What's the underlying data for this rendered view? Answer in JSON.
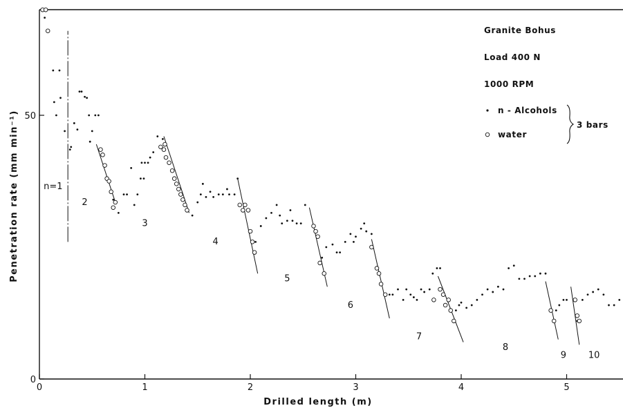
{
  "chart_data": {
    "type": "scatter",
    "title": "",
    "xlabel": "Drilled  length  (m)",
    "ylabel": "Penetration  rate  (mm min⁻¹)",
    "xlim": [
      0,
      5.55
    ],
    "ylim": [
      0,
      70
    ],
    "x_ticks": [
      "0",
      "1",
      "2",
      "3",
      "4",
      "5"
    ],
    "y_ticks": [
      "0",
      "50"
    ],
    "legend": {
      "lines": [
        "Granite Bohus",
        "Load  400 N",
        "1000  RPM"
      ],
      "n_alcohols_label": "n - Alcohols",
      "water_label": "water",
      "group_label": "3 bars",
      "placement": "top-right"
    },
    "segment_labels": [
      {
        "text": "n=1",
        "x": 0.13,
        "y": 36.0
      },
      {
        "text": "2",
        "x": 0.43,
        "y": 33.0
      },
      {
        "text": "3",
        "x": 1.0,
        "y": 29.0
      },
      {
        "text": "4",
        "x": 1.67,
        "y": 25.5
      },
      {
        "text": "5",
        "x": 2.35,
        "y": 18.5
      },
      {
        "text": "6",
        "x": 2.95,
        "y": 13.5
      },
      {
        "text": "7",
        "x": 3.6,
        "y": 7.5
      },
      {
        "text": "8",
        "x": 4.42,
        "y": 5.5
      },
      {
        "text": "9",
        "x": 4.97,
        "y": 4.0
      },
      {
        "text": "10",
        "x": 5.26,
        "y": 4.0
      }
    ],
    "divider": {
      "x": 0.27,
      "y_from": 26,
      "y_to": 66
    },
    "series": [
      {
        "name": "n - Alcohols",
        "marker": "dot",
        "points": [
          [
            0.05,
            68.5
          ],
          [
            0.13,
            58.5
          ],
          [
            0.19,
            58.5
          ],
          [
            0.14,
            52.5
          ],
          [
            0.2,
            53.3
          ],
          [
            0.16,
            50
          ],
          [
            0.24,
            47
          ],
          [
            0.29,
            43.5
          ],
          [
            0.3,
            44
          ],
          [
            0.33,
            48.5
          ],
          [
            0.36,
            47.3
          ],
          [
            0.38,
            54.5
          ],
          [
            0.4,
            54.5
          ],
          [
            0.43,
            53.5
          ],
          [
            0.45,
            53.3
          ],
          [
            0.47,
            50
          ],
          [
            0.5,
            47
          ],
          [
            0.53,
            50
          ],
          [
            0.56,
            50
          ],
          [
            0.48,
            45
          ],
          [
            0.7,
            34
          ],
          [
            0.75,
            31.5
          ],
          [
            0.8,
            35
          ],
          [
            0.83,
            35
          ],
          [
            0.87,
            40
          ],
          [
            0.9,
            33
          ],
          [
            0.93,
            35
          ],
          [
            0.96,
            38
          ],
          [
            0.99,
            38
          ],
          [
            0.97,
            41
          ],
          [
            1.0,
            41
          ],
          [
            1.03,
            41
          ],
          [
            1.05,
            42
          ],
          [
            1.08,
            43
          ],
          [
            1.12,
            46
          ],
          [
            1.17,
            45.5
          ],
          [
            1.45,
            31
          ],
          [
            1.5,
            33.5
          ],
          [
            1.53,
            35
          ],
          [
            1.55,
            37
          ],
          [
            1.58,
            34.5
          ],
          [
            1.62,
            35.5
          ],
          [
            1.65,
            34.5
          ],
          [
            1.7,
            35
          ],
          [
            1.74,
            35
          ],
          [
            1.78,
            36
          ],
          [
            1.8,
            35
          ],
          [
            1.85,
            35
          ],
          [
            1.88,
            38
          ],
          [
            2.05,
            26
          ],
          [
            2.1,
            29
          ],
          [
            2.15,
            30.5
          ],
          [
            2.2,
            31.5
          ],
          [
            2.25,
            33
          ],
          [
            2.28,
            31
          ],
          [
            2.3,
            29.5
          ],
          [
            2.35,
            30
          ],
          [
            2.38,
            32
          ],
          [
            2.4,
            30
          ],
          [
            2.44,
            29.5
          ],
          [
            2.48,
            29.5
          ],
          [
            2.52,
            33
          ],
          [
            2.68,
            23
          ],
          [
            2.72,
            25
          ],
          [
            2.78,
            25.5
          ],
          [
            2.82,
            24
          ],
          [
            2.85,
            24
          ],
          [
            2.9,
            26
          ],
          [
            2.95,
            27.5
          ],
          [
            2.98,
            26
          ],
          [
            3.0,
            27
          ],
          [
            3.05,
            28.5
          ],
          [
            3.08,
            29.5
          ],
          [
            3.1,
            28
          ],
          [
            3.15,
            27.5
          ],
          [
            3.32,
            16
          ],
          [
            3.35,
            16
          ],
          [
            3.4,
            17
          ],
          [
            3.45,
            15
          ],
          [
            3.48,
            17
          ],
          [
            3.52,
            16
          ],
          [
            3.55,
            15.5
          ],
          [
            3.58,
            15
          ],
          [
            3.62,
            17
          ],
          [
            3.65,
            16.5
          ],
          [
            3.7,
            17
          ],
          [
            3.73,
            20
          ],
          [
            3.77,
            21
          ],
          [
            3.8,
            21
          ],
          [
            3.95,
            13
          ],
          [
            3.98,
            14
          ],
          [
            4.0,
            14.5
          ],
          [
            4.05,
            13.5
          ],
          [
            4.1,
            14
          ],
          [
            4.15,
            15
          ],
          [
            4.2,
            16
          ],
          [
            4.25,
            17
          ],
          [
            4.3,
            16.5
          ],
          [
            4.35,
            17.5
          ],
          [
            4.4,
            17
          ],
          [
            4.45,
            21
          ],
          [
            4.5,
            21.5
          ],
          [
            4.55,
            19
          ],
          [
            4.6,
            19
          ],
          [
            4.65,
            19.5
          ],
          [
            4.7,
            19.5
          ],
          [
            4.75,
            20
          ],
          [
            4.8,
            20
          ],
          [
            4.9,
            13
          ],
          [
            4.93,
            14
          ],
          [
            4.97,
            15
          ],
          [
            5.0,
            15
          ],
          [
            5.1,
            11
          ],
          [
            5.15,
            15
          ],
          [
            5.2,
            16
          ],
          [
            5.25,
            16.5
          ],
          [
            5.3,
            17
          ],
          [
            5.35,
            16
          ],
          [
            5.4,
            14
          ],
          [
            5.45,
            14
          ],
          [
            5.5,
            15
          ],
          [
            5.55,
            16
          ]
        ]
      },
      {
        "name": "water",
        "marker": "circle",
        "points": [
          [
            0.03,
            70
          ],
          [
            0.06,
            70
          ],
          [
            0.08,
            66
          ],
          [
            0.58,
            43.5
          ],
          [
            0.6,
            42.5
          ],
          [
            0.62,
            40.5
          ],
          [
            0.64,
            38
          ],
          [
            0.66,
            37.5
          ],
          [
            0.68,
            35.5
          ],
          [
            0.7,
            32.5
          ],
          [
            0.72,
            33.5
          ],
          [
            1.15,
            44
          ],
          [
            1.19,
            44.5
          ],
          [
            1.18,
            43.5
          ],
          [
            1.2,
            42
          ],
          [
            1.23,
            41
          ],
          [
            1.26,
            39.5
          ],
          [
            1.28,
            38
          ],
          [
            1.3,
            37
          ],
          [
            1.32,
            36
          ],
          [
            1.34,
            35
          ],
          [
            1.36,
            34
          ],
          [
            1.38,
            33
          ],
          [
            1.4,
            32
          ],
          [
            1.9,
            33
          ],
          [
            1.93,
            32
          ],
          [
            1.95,
            33
          ],
          [
            1.98,
            32
          ],
          [
            2.0,
            28
          ],
          [
            2.02,
            26
          ],
          [
            2.04,
            24
          ],
          [
            2.6,
            29
          ],
          [
            2.62,
            28
          ],
          [
            2.64,
            27
          ],
          [
            2.66,
            22
          ],
          [
            2.7,
            20
          ],
          [
            3.15,
            25
          ],
          [
            3.2,
            21
          ],
          [
            3.22,
            20
          ],
          [
            3.24,
            18
          ],
          [
            3.28,
            16
          ],
          [
            3.74,
            15
          ],
          [
            3.8,
            17
          ],
          [
            3.83,
            16
          ],
          [
            3.85,
            14
          ],
          [
            3.88,
            15
          ],
          [
            3.9,
            13
          ],
          [
            3.93,
            11
          ],
          [
            4.85,
            13
          ],
          [
            4.88,
            11
          ],
          [
            5.08,
            15
          ],
          [
            5.1,
            12
          ],
          [
            5.12,
            11
          ]
        ]
      }
    ],
    "trend_lines": [
      [
        [
          0.54,
          44.5
        ],
        [
          0.72,
          33.5
        ]
      ],
      [
        [
          1.18,
          46
        ],
        [
          1.42,
          31.5
        ]
      ],
      [
        [
          1.88,
          38
        ],
        [
          2.07,
          20
        ]
      ],
      [
        [
          2.56,
          32.5
        ],
        [
          2.73,
          17.5
        ]
      ],
      [
        [
          3.15,
          26.5
        ],
        [
          3.32,
          11.5
        ]
      ],
      [
        [
          3.78,
          19.5
        ],
        [
          4.02,
          7
        ]
      ],
      [
        [
          4.8,
          18.5
        ],
        [
          4.92,
          7.5
        ]
      ],
      [
        [
          5.04,
          17.5
        ],
        [
          5.12,
          6.5
        ]
      ]
    ]
  }
}
